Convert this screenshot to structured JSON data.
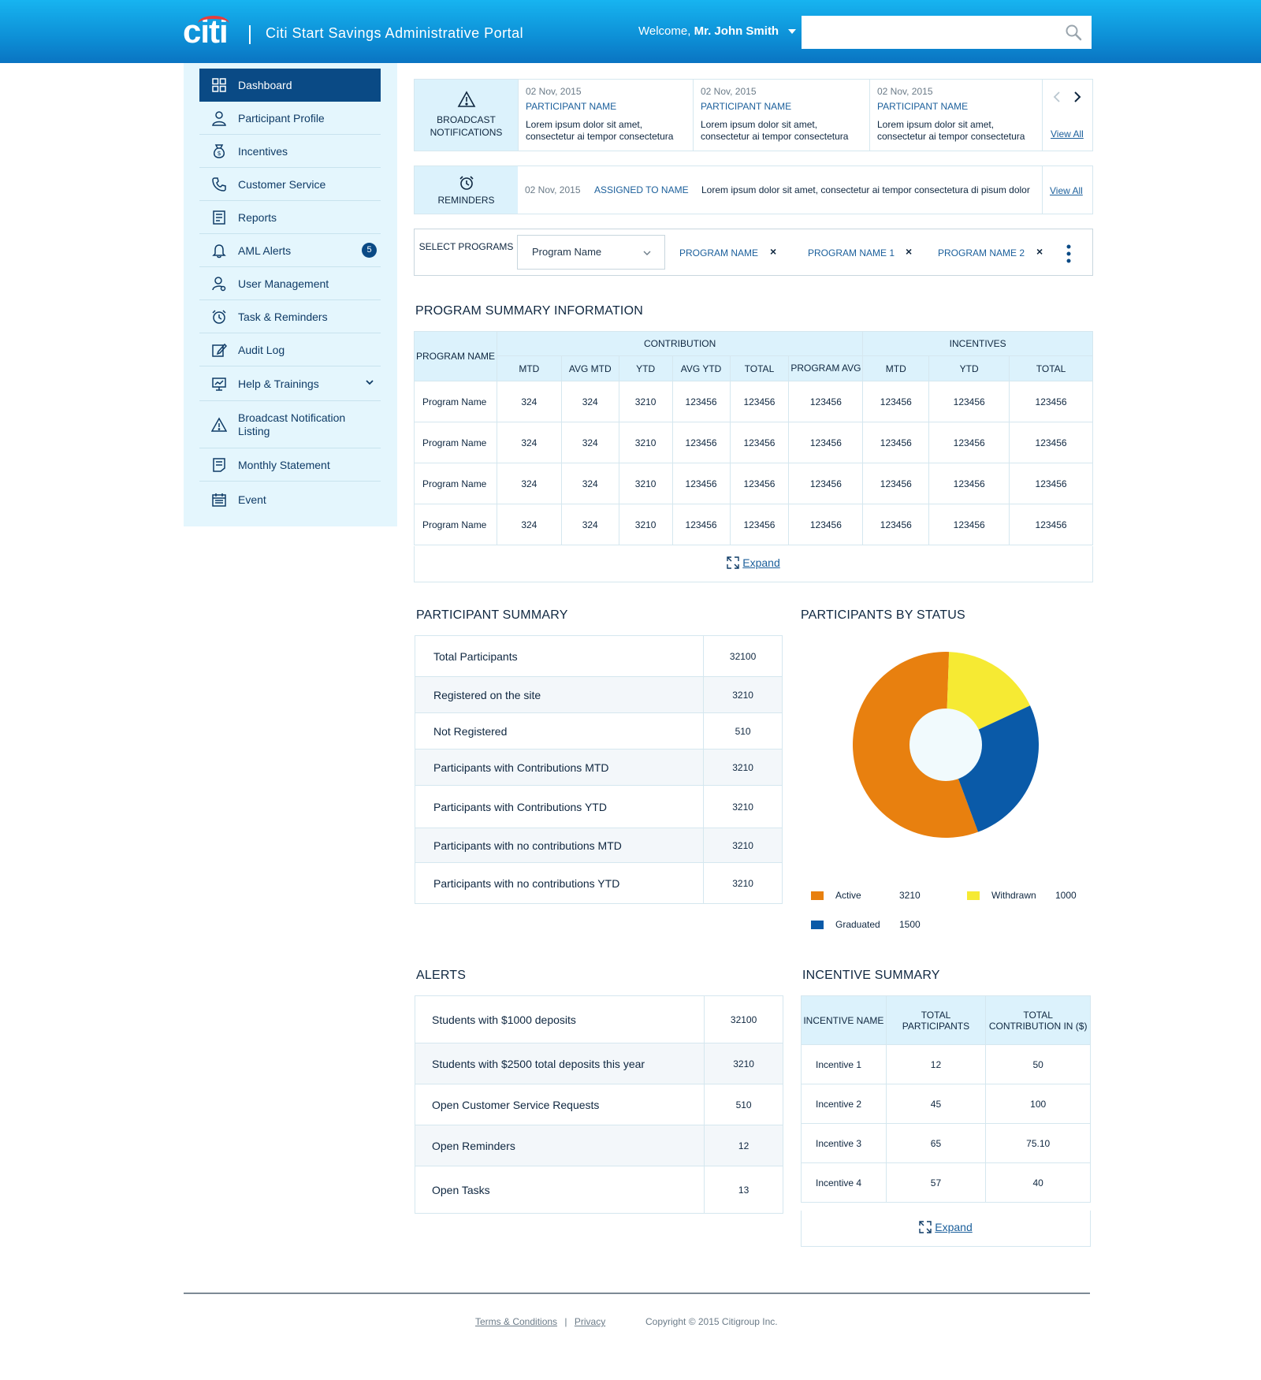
{
  "header": {
    "logo_text": "citi",
    "portal_title": "Citi Start Savings Administrative Portal",
    "welcome_prefix": "Welcome,",
    "user_name": "Mr. John Smith",
    "search_placeholder": "",
    "colors": {
      "header_top": "#17b4f0",
      "header_bottom": "#0a74c2",
      "logo_arc": "#e53d3d"
    }
  },
  "sidebar": {
    "items": [
      {
        "label": "Dashboard",
        "icon": "dashboard-icon",
        "active": true
      },
      {
        "label": "Participant Profile",
        "icon": "user-icon"
      },
      {
        "label": "Incentives",
        "icon": "money-bag-icon"
      },
      {
        "label": "Customer Service",
        "icon": "phone-icon"
      },
      {
        "label": "Reports",
        "icon": "report-icon"
      },
      {
        "label": "AML Alerts",
        "icon": "bell-icon",
        "badge": "5"
      },
      {
        "label": "User Management",
        "icon": "user-settings-icon"
      },
      {
        "label": "Task & Reminders",
        "icon": "alarm-clock-icon"
      },
      {
        "label": "Audit Log",
        "icon": "edit-document-icon"
      },
      {
        "label": "Help & Trainings",
        "icon": "presentation-icon",
        "expandable": true
      },
      {
        "label": "Broadcast Notification Listing",
        "icon": "warning-icon"
      },
      {
        "label": "Monthly Statement",
        "icon": "statement-icon"
      },
      {
        "label": "Event",
        "icon": "calendar-icon"
      }
    ]
  },
  "broadcast": {
    "label": "BROADCAST NOTIFICATIONS",
    "cards": [
      {
        "date": "02 Nov, 2015",
        "name": "PARTICIPANT NAME",
        "body": "Lorem ipsum dolor sit amet, consectetur ai tempor consectetura"
      },
      {
        "date": "02 Nov, 2015",
        "name": "PARTICIPANT NAME",
        "body": "Lorem ipsum dolor sit amet, consectetur ai tempor consectetura"
      },
      {
        "date": "02 Nov, 2015",
        "name": "PARTICIPANT NAME",
        "body": "Lorem ipsum dolor sit amet, consectetur ai tempor consectetura"
      }
    ],
    "view_all": "View All"
  },
  "reminders": {
    "label": "REMINDERS",
    "date": "02 Nov, 2015",
    "assigned": "ASSIGNED TO NAME",
    "text": "Lorem ipsum dolor sit amet, consectetur ai tempor consectetura di pisum dolor",
    "view_all": "View All"
  },
  "select_programs": {
    "label": "SELECT PROGRAMS",
    "dropdown_value": "Program Name",
    "chips": [
      "PROGRAM NAME",
      "PROGRAM NAME 1",
      "PROGRAM NAME 2"
    ],
    "remove_glyph": "×"
  },
  "program_summary": {
    "title": "PROGRAM SUMMARY INFORMATION",
    "group_headers": {
      "program_name": "PROGRAM NAME",
      "contribution": "CONTRIBUTION",
      "incentives": "INCENTIVES"
    },
    "columns": [
      "MTD",
      "AVG MTD",
      "YTD",
      "AVG YTD",
      "TOTAL",
      "PROGRAM AVG",
      "MTD",
      "YTD",
      "TOTAL"
    ],
    "rows": [
      [
        "Program Name",
        "324",
        "324",
        "3210",
        "123456",
        "123456",
        "123456",
        "123456",
        "123456",
        "123456"
      ],
      [
        "Program Name",
        "324",
        "324",
        "3210",
        "123456",
        "123456",
        "123456",
        "123456",
        "123456",
        "123456"
      ],
      [
        "Program Name",
        "324",
        "324",
        "3210",
        "123456",
        "123456",
        "123456",
        "123456",
        "123456",
        "123456"
      ],
      [
        "Program Name",
        "324",
        "324",
        "3210",
        "123456",
        "123456",
        "123456",
        "123456",
        "123456",
        "123456"
      ]
    ],
    "expand": "Expand"
  },
  "participant_summary": {
    "title": "PARTICIPANT SUMMARY",
    "rows": [
      {
        "label": "Total Participants",
        "value": "32100"
      },
      {
        "label": "Registered on the site",
        "value": "3210"
      },
      {
        "label": "Not Registered",
        "value": "510"
      },
      {
        "label": "Participants with Contributions MTD",
        "value": "3210"
      },
      {
        "label": "Participants with Contributions  YTD",
        "value": "3210"
      },
      {
        "label": "Participants with no contributions  MTD",
        "value": "3210"
      },
      {
        "label": "Participants with no contributions  YTD",
        "value": "3210"
      }
    ]
  },
  "participants_by_status": {
    "title": "PARTICIPANTS BY STATUS",
    "legend": [
      {
        "label": "Active",
        "value": "3210",
        "color": "#e8800f"
      },
      {
        "label": "Withdrawn",
        "value": "1000",
        "color": "#f6ea33"
      },
      {
        "label": "Graduated",
        "value": "1500",
        "color": "#0a5aa8"
      }
    ]
  },
  "chart_data": {
    "type": "pie",
    "categories": [
      "Active",
      "Withdrawn",
      "Graduated"
    ],
    "values": [
      3210,
      1000,
      1500
    ],
    "title": "PARTICIPANTS BY STATUS",
    "legend": "bottom",
    "donut": true
  },
  "alerts": {
    "title": "ALERTS",
    "rows": [
      {
        "label": "Students with $1000 deposits",
        "value": "32100"
      },
      {
        "label": "Students with $2500 total deposits this year",
        "value": "3210"
      },
      {
        "label": "Open Customer Service Requests",
        "value": "510"
      },
      {
        "label": "Open Reminders",
        "value": "12"
      },
      {
        "label": "Open Tasks",
        "value": "13"
      }
    ]
  },
  "incentive_summary": {
    "title": "INCENTIVE SUMMARY",
    "columns": [
      "INCENTIVE NAME",
      "TOTAL PARTICIPANTS",
      "TOTAL CONTRIBUTION IN ($)"
    ],
    "rows": [
      [
        "Incentive 1",
        "12",
        "50"
      ],
      [
        "Incentive 2",
        "45",
        "100"
      ],
      [
        "Incentive 3",
        "65",
        "75.10"
      ],
      [
        "Incentive 4",
        "57",
        "40"
      ]
    ],
    "expand": "Expand"
  },
  "footer": {
    "terms": "Terms & Conditions",
    "separator": "|",
    "privacy": "Privacy",
    "copyright": "Copyright © 2015 Citigroup Inc."
  }
}
